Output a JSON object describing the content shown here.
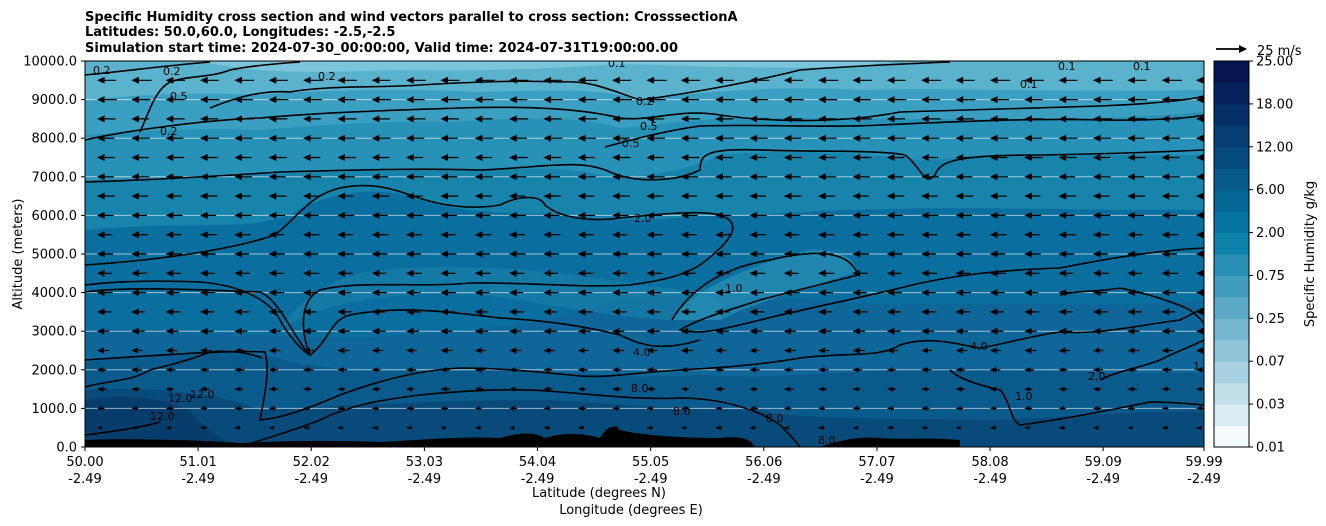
{
  "chart_data": {
    "type": "contourf",
    "title_lines": [
      "Specific Humidity cross section and wind vectors parallel to cross section: CrosssectionA",
      "Latitudes: 50.0,60.0, Longitudes: -2.5,-2.5",
      "Simulation start time: 2024-07-30_00:00:00, Valid time: 2024-07-31T19:00:00.00"
    ],
    "xlabel_lines": [
      "Latitude (degrees N)",
      "Longitude (degrees E)"
    ],
    "ylabel": "Altitude (meters)",
    "x_ticks": [
      {
        "lat": "50.00",
        "lon": "-2.49"
      },
      {
        "lat": "51.01",
        "lon": "-2.49"
      },
      {
        "lat": "52.02",
        "lon": "-2.49"
      },
      {
        "lat": "53.03",
        "lon": "-2.49"
      },
      {
        "lat": "54.04",
        "lon": "-2.49"
      },
      {
        "lat": "55.05",
        "lon": "-2.49"
      },
      {
        "lat": "56.06",
        "lon": "-2.49"
      },
      {
        "lat": "57.07",
        "lon": "-2.49"
      },
      {
        "lat": "58.08",
        "lon": "-2.49"
      },
      {
        "lat": "59.09",
        "lon": "-2.49"
      },
      {
        "lat": "59.99",
        "lon": "-2.49"
      }
    ],
    "xlim": [
      50.0,
      59.99
    ],
    "y_ticks": [
      "0.0",
      "1000.0",
      "2000.0",
      "3000.0",
      "4000.0",
      "5000.0",
      "6000.0",
      "7000.0",
      "8000.0",
      "9000.0",
      "10000.0"
    ],
    "ylim": [
      0,
      10000
    ],
    "y_grid": true,
    "colorbar": {
      "label": "Specific Humidity g/kg",
      "tick_labels": [
        "25.00",
        "18.00",
        "12.00",
        "6.00",
        "2.00",
        "0.75",
        "0.25",
        "0.07",
        "0.03",
        "0.01"
      ],
      "levels": [
        0.01,
        0.02,
        0.03,
        0.05,
        0.07,
        0.1,
        0.25,
        0.5,
        0.75,
        1.0,
        2.0,
        4.0,
        6.0,
        8.0,
        12.0,
        15.0,
        18.0,
        21.0,
        25.0
      ]
    },
    "quiver_key": {
      "label": "25 m/s",
      "speed_ms": 25
    },
    "wind_direction": "toward decreasing latitude (south)",
    "contour_levels_labeled": [
      "0.1",
      "0.2",
      "0.5",
      "1.0",
      "2.0",
      "4.0",
      "8.0",
      "12.0"
    ],
    "profile_altitudes_m": [
      0,
      1000,
      2000,
      3000,
      4000,
      5000,
      6000,
      7000,
      8000,
      9000,
      10000
    ],
    "profile_humidity_gkg": [
      13.0,
      10.0,
      7.0,
      4.5,
      3.0,
      2.0,
      1.6,
      1.0,
      0.5,
      0.25,
      0.12
    ],
    "terrain": "black filled orography below ~300 m between 54.0 and 57.5 N"
  }
}
